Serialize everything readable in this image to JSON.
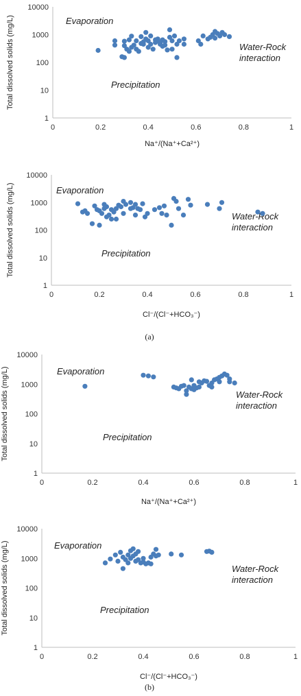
{
  "colors": {
    "point": "#4a7ebb",
    "axis": "#bdbdbd"
  },
  "captions": [
    "(a)",
    "(b)"
  ],
  "chart_data": [
    {
      "type": "scatter",
      "xlabel": "Na⁺/(Na⁺+Ca²⁺)",
      "ylabel": "Total dissolved solids (mg/L)",
      "xlim": [
        0,
        1
      ],
      "ylim": [
        1,
        10000
      ],
      "yscale": "log",
      "xticks": [
        "0",
        "0.2",
        "0.4",
        "0.6",
        "0.8",
        "1"
      ],
      "yticks": [
        "1",
        "10",
        "100",
        "1000",
        "10000"
      ],
      "annotations": [
        "Evaporation",
        "Water-Rock\ninteraction",
        "Precipitation"
      ],
      "points": [
        [
          0.19,
          270
        ],
        [
          0.26,
          420
        ],
        [
          0.26,
          600
        ],
        [
          0.29,
          160
        ],
        [
          0.3,
          150
        ],
        [
          0.3,
          400
        ],
        [
          0.3,
          580
        ],
        [
          0.31,
          300
        ],
        [
          0.32,
          650
        ],
        [
          0.32,
          250
        ],
        [
          0.33,
          350
        ],
        [
          0.33,
          880
        ],
        [
          0.34,
          420
        ],
        [
          0.35,
          300
        ],
        [
          0.35,
          600
        ],
        [
          0.36,
          250
        ],
        [
          0.37,
          480
        ],
        [
          0.37,
          850
        ],
        [
          0.38,
          550
        ],
        [
          0.38,
          450
        ],
        [
          0.39,
          700
        ],
        [
          0.39,
          1200
        ],
        [
          0.4,
          350
        ],
        [
          0.4,
          600
        ],
        [
          0.41,
          450
        ],
        [
          0.41,
          900
        ],
        [
          0.42,
          300
        ],
        [
          0.43,
          520
        ],
        [
          0.43,
          650
        ],
        [
          0.44,
          700
        ],
        [
          0.44,
          620
        ],
        [
          0.45,
          450
        ],
        [
          0.45,
          500
        ],
        [
          0.46,
          380
        ],
        [
          0.46,
          650
        ],
        [
          0.47,
          420
        ],
        [
          0.47,
          560
        ],
        [
          0.48,
          280
        ],
        [
          0.49,
          1500
        ],
        [
          0.49,
          800
        ],
        [
          0.5,
          600
        ],
        [
          0.5,
          300
        ],
        [
          0.51,
          900
        ],
        [
          0.52,
          150
        ],
        [
          0.52,
          450
        ],
        [
          0.53,
          600
        ],
        [
          0.55,
          700
        ],
        [
          0.55,
          450
        ],
        [
          0.61,
          600
        ],
        [
          0.62,
          450
        ],
        [
          0.63,
          900
        ],
        [
          0.65,
          700
        ],
        [
          0.66,
          800
        ],
        [
          0.67,
          1000
        ],
        [
          0.68,
          750
        ],
        [
          0.68,
          1300
        ],
        [
          0.69,
          1100
        ],
        [
          0.7,
          900
        ],
        [
          0.71,
          1200
        ],
        [
          0.72,
          1000
        ],
        [
          0.74,
          850
        ]
      ]
    },
    {
      "type": "scatter",
      "xlabel": "Cl⁻/(Cl⁻+HCO₃⁻)",
      "ylabel": "Total dissolved solids (mg/L)",
      "xlim": [
        0,
        1
      ],
      "ylim": [
        1,
        10000
      ],
      "yscale": "log",
      "xticks": [
        "0",
        "0.2",
        "0.4",
        "0.6",
        "0.8",
        "1"
      ],
      "yticks": [
        "1",
        "10",
        "100",
        "1000",
        "10000"
      ],
      "annotations": [
        "Evaporation",
        "Water-Rock\ninteraction",
        "Precipitation"
      ],
      "points": [
        [
          0.11,
          900
        ],
        [
          0.13,
          450
        ],
        [
          0.14,
          500
        ],
        [
          0.15,
          400
        ],
        [
          0.17,
          170
        ],
        [
          0.18,
          750
        ],
        [
          0.19,
          550
        ],
        [
          0.2,
          500
        ],
        [
          0.2,
          150
        ],
        [
          0.21,
          400
        ],
        [
          0.22,
          600
        ],
        [
          0.22,
          850
        ],
        [
          0.23,
          300
        ],
        [
          0.23,
          700
        ],
        [
          0.24,
          350
        ],
        [
          0.25,
          250
        ],
        [
          0.25,
          550
        ],
        [
          0.26,
          450
        ],
        [
          0.27,
          600
        ],
        [
          0.27,
          250
        ],
        [
          0.28,
          800
        ],
        [
          0.29,
          700
        ],
        [
          0.3,
          1100
        ],
        [
          0.3,
          400
        ],
        [
          0.31,
          850
        ],
        [
          0.33,
          1000
        ],
        [
          0.33,
          600
        ],
        [
          0.34,
          650
        ],
        [
          0.35,
          850
        ],
        [
          0.35,
          350
        ],
        [
          0.36,
          600
        ],
        [
          0.37,
          550
        ],
        [
          0.38,
          900
        ],
        [
          0.39,
          300
        ],
        [
          0.4,
          400
        ],
        [
          0.43,
          550
        ],
        [
          0.45,
          650
        ],
        [
          0.46,
          400
        ],
        [
          0.47,
          750
        ],
        [
          0.48,
          350
        ],
        [
          0.5,
          150
        ],
        [
          0.51,
          1400
        ],
        [
          0.52,
          1100
        ],
        [
          0.53,
          600
        ],
        [
          0.55,
          350
        ],
        [
          0.57,
          1300
        ],
        [
          0.58,
          800
        ],
        [
          0.65,
          850
        ],
        [
          0.7,
          600
        ],
        [
          0.71,
          1000
        ],
        [
          0.86,
          450
        ],
        [
          0.88,
          400
        ]
      ]
    },
    {
      "type": "scatter",
      "xlabel": "Na⁺/(Na⁺+Ca²⁺)",
      "ylabel": "Total dissolved solids (mg/L)",
      "xlim": [
        0,
        1
      ],
      "ylim": [
        1,
        10000
      ],
      "yscale": "log",
      "xticks": [
        "0",
        "0.2",
        "0.4",
        "0.6",
        "0.8",
        "1"
      ],
      "yticks": [
        "1",
        "10",
        "100",
        "1000",
        "10000"
      ],
      "annotations": [
        "Evaporation",
        "Water-Rock\ninteraction",
        "Precipitation"
      ],
      "points": [
        [
          0.17,
          850
        ],
        [
          0.4,
          2000
        ],
        [
          0.42,
          1900
        ],
        [
          0.44,
          1750
        ],
        [
          0.52,
          800
        ],
        [
          0.53,
          750
        ],
        [
          0.54,
          700
        ],
        [
          0.55,
          850
        ],
        [
          0.56,
          900
        ],
        [
          0.57,
          600
        ],
        [
          0.57,
          450
        ],
        [
          0.58,
          800
        ],
        [
          0.59,
          700
        ],
        [
          0.59,
          1400
        ],
        [
          0.6,
          650
        ],
        [
          0.6,
          900
        ],
        [
          0.61,
          750
        ],
        [
          0.62,
          800
        ],
        [
          0.62,
          1200
        ],
        [
          0.63,
          1100
        ],
        [
          0.64,
          1300
        ],
        [
          0.65,
          1250
        ],
        [
          0.66,
          900
        ],
        [
          0.67,
          800
        ],
        [
          0.67,
          1100
        ],
        [
          0.68,
          1400
        ],
        [
          0.69,
          1500
        ],
        [
          0.7,
          1700
        ],
        [
          0.7,
          1200
        ],
        [
          0.71,
          1900
        ],
        [
          0.72,
          2200
        ],
        [
          0.73,
          2000
        ],
        [
          0.74,
          1500
        ],
        [
          0.74,
          1200
        ],
        [
          0.76,
          1100
        ]
      ]
    },
    {
      "type": "scatter",
      "xlabel": "Cl⁻/(Cl⁻+HCO₃⁻)",
      "ylabel": "Total dissolved solids (mg/L)",
      "xlim": [
        0,
        1
      ],
      "ylim": [
        1,
        10000
      ],
      "yscale": "log",
      "xticks": [
        "0",
        "0.2",
        "0.4",
        "0.6",
        "0.8",
        "1"
      ],
      "yticks": [
        "1",
        "10",
        "100",
        "1000",
        "10000"
      ],
      "annotations": [
        "Evaporation",
        "Water-Rock\ninteraction",
        "Precipitation"
      ],
      "points": [
        [
          0.25,
          700
        ],
        [
          0.27,
          950
        ],
        [
          0.29,
          1300
        ],
        [
          0.3,
          800
        ],
        [
          0.31,
          1600
        ],
        [
          0.32,
          1100
        ],
        [
          0.32,
          450
        ],
        [
          0.33,
          900
        ],
        [
          0.34,
          700
        ],
        [
          0.34,
          1300
        ],
        [
          0.35,
          1800
        ],
        [
          0.35,
          1000
        ],
        [
          0.36,
          2100
        ],
        [
          0.36,
          1200
        ],
        [
          0.37,
          800
        ],
        [
          0.37,
          1400
        ],
        [
          0.38,
          900
        ],
        [
          0.38,
          1700
        ],
        [
          0.39,
          700
        ],
        [
          0.4,
          1000
        ],
        [
          0.4,
          750
        ],
        [
          0.41,
          650
        ],
        [
          0.42,
          700
        ],
        [
          0.43,
          1100
        ],
        [
          0.43,
          650
        ],
        [
          0.44,
          1400
        ],
        [
          0.45,
          2000
        ],
        [
          0.45,
          1200
        ],
        [
          0.46,
          1300
        ],
        [
          0.51,
          1400
        ],
        [
          0.55,
          1300
        ],
        [
          0.65,
          1700
        ],
        [
          0.66,
          1750
        ],
        [
          0.67,
          1600
        ]
      ]
    }
  ]
}
